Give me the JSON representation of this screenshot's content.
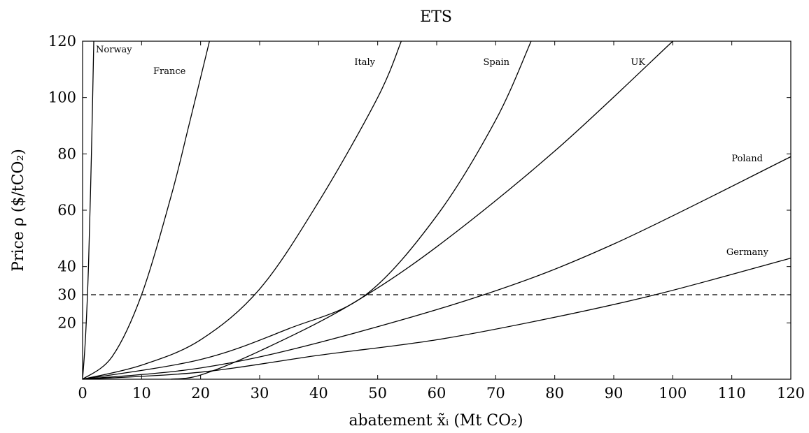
{
  "chart_data": {
    "type": "line",
    "title": "ETS",
    "xlabel": "abatement x̃ᵢ (Mt CO₂)",
    "ylabel": "Price ρ ($/tCO₂)",
    "xlim": [
      0,
      120
    ],
    "ylim": [
      0,
      120
    ],
    "xticks": [
      0,
      10,
      20,
      30,
      40,
      50,
      60,
      70,
      80,
      90,
      100,
      110,
      120
    ],
    "yticks": [
      20,
      30,
      40,
      60,
      80,
      100,
      120
    ],
    "grid": false,
    "reference_line": {
      "y": 30,
      "style": "dashed"
    },
    "series": [
      {
        "name": "Norway",
        "x": [
          0,
          0.5,
          1,
          1.5,
          1.9
        ],
        "y": [
          0,
          15,
          40,
          80,
          120
        ]
      },
      {
        "name": "France",
        "x": [
          0,
          5,
          10,
          15,
          18,
          21.5
        ],
        "y": [
          0,
          8,
          30,
          65,
          90,
          120
        ]
      },
      {
        "name": "Italy",
        "x": [
          0,
          10,
          20,
          30,
          40,
          50,
          54
        ],
        "y": [
          0,
          5,
          14,
          32,
          63,
          100,
          120
        ]
      },
      {
        "name": "Spain",
        "x": [
          0,
          20,
          35,
          48,
          60,
          70,
          76
        ],
        "y": [
          0,
          7,
          18,
          30,
          58,
          92,
          120
        ]
      },
      {
        "name": "UK",
        "x": [
          15,
          20,
          30,
          45,
          60,
          80,
          100
        ],
        "y": [
          0,
          1.5,
          10,
          26,
          47,
          81,
          120
        ]
      },
      {
        "name": "Poland",
        "x": [
          0,
          20,
          40,
          68,
          90,
          120
        ],
        "y": [
          0,
          4,
          13,
          30,
          48,
          79
        ]
      },
      {
        "name": "Germany",
        "x": [
          0,
          20,
          40,
          60,
          80,
          98,
          120
        ],
        "y": [
          0,
          2.5,
          8.5,
          14,
          22,
          30.5,
          43
        ]
      }
    ]
  }
}
